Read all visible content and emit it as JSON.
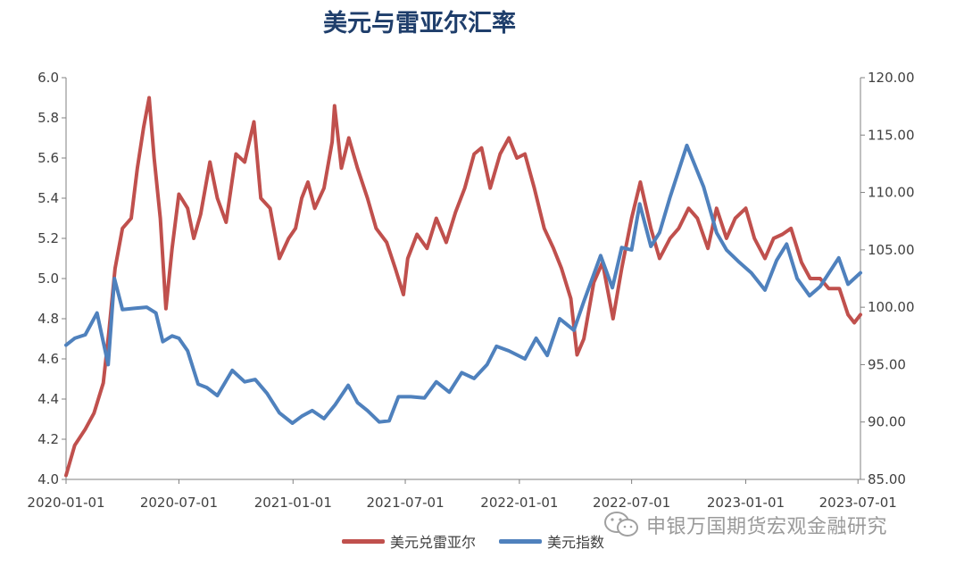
{
  "chart_data": {
    "type": "line",
    "title": "美元与雷亚尔汇率",
    "x_tick_labels": [
      "2020-01-01",
      "2020-07-01",
      "2021-01-01",
      "2021-07-01",
      "2022-01-01",
      "2022-07-01",
      "2023-01-01",
      "2023-07-01"
    ],
    "x_range": [
      "2020-01-01",
      "2023-07-05"
    ],
    "y_left": {
      "range": [
        4.0,
        6.0
      ],
      "ticks": [
        "4.0",
        "4.2",
        "4.4",
        "4.6",
        "4.8",
        "5.0",
        "5.2",
        "5.4",
        "5.6",
        "5.8",
        "6.0"
      ]
    },
    "y_right": {
      "range": [
        85,
        120
      ],
      "ticks": [
        "85.00",
        "90.00",
        "95.00",
        "100.00",
        "105.00",
        "110.00",
        "115.00",
        "120.00"
      ]
    },
    "grid": false,
    "legend_position": "bottom",
    "series": [
      {
        "name": "美元兑雷亚尔",
        "axis": "left",
        "color": "#c0504d",
        "points": [
          [
            "2020-01-01",
            4.02
          ],
          [
            "2020-01-15",
            4.17
          ],
          [
            "2020-02-01",
            4.25
          ],
          [
            "2020-02-15",
            4.33
          ],
          [
            "2020-03-01",
            4.48
          ],
          [
            "2020-03-10",
            4.73
          ],
          [
            "2020-03-20",
            5.05
          ],
          [
            "2020-04-01",
            5.25
          ],
          [
            "2020-04-15",
            5.3
          ],
          [
            "2020-04-25",
            5.55
          ],
          [
            "2020-05-05",
            5.75
          ],
          [
            "2020-05-14",
            5.9
          ],
          [
            "2020-05-22",
            5.6
          ],
          [
            "2020-06-01",
            5.3
          ],
          [
            "2020-06-10",
            4.85
          ],
          [
            "2020-06-20",
            5.15
          ],
          [
            "2020-07-01",
            5.42
          ],
          [
            "2020-07-15",
            5.35
          ],
          [
            "2020-07-25",
            5.2
          ],
          [
            "2020-08-05",
            5.32
          ],
          [
            "2020-08-20",
            5.58
          ],
          [
            "2020-09-01",
            5.4
          ],
          [
            "2020-09-15",
            5.28
          ],
          [
            "2020-10-01",
            5.62
          ],
          [
            "2020-10-15",
            5.58
          ],
          [
            "2020-10-30",
            5.78
          ],
          [
            "2020-11-10",
            5.4
          ],
          [
            "2020-11-25",
            5.35
          ],
          [
            "2020-12-10",
            5.1
          ],
          [
            "2020-12-25",
            5.2
          ],
          [
            "2021-01-05",
            5.25
          ],
          [
            "2021-01-15",
            5.4
          ],
          [
            "2021-01-25",
            5.48
          ],
          [
            "2021-02-05",
            5.35
          ],
          [
            "2021-02-20",
            5.45
          ],
          [
            "2021-03-05",
            5.68
          ],
          [
            "2021-03-09",
            5.86
          ],
          [
            "2021-03-20",
            5.55
          ],
          [
            "2021-04-01",
            5.7
          ],
          [
            "2021-04-15",
            5.55
          ],
          [
            "2021-05-01",
            5.4
          ],
          [
            "2021-05-15",
            5.25
          ],
          [
            "2021-06-01",
            5.18
          ],
          [
            "2021-06-15",
            5.05
          ],
          [
            "2021-06-28",
            4.92
          ],
          [
            "2021-07-05",
            5.1
          ],
          [
            "2021-07-20",
            5.22
          ],
          [
            "2021-08-05",
            5.15
          ],
          [
            "2021-08-20",
            5.3
          ],
          [
            "2021-09-05",
            5.18
          ],
          [
            "2021-09-20",
            5.33
          ],
          [
            "2021-10-05",
            5.45
          ],
          [
            "2021-10-20",
            5.62
          ],
          [
            "2021-11-01",
            5.65
          ],
          [
            "2021-11-15",
            5.45
          ],
          [
            "2021-12-01",
            5.62
          ],
          [
            "2021-12-15",
            5.7
          ],
          [
            "2021-12-28",
            5.6
          ],
          [
            "2022-01-10",
            5.62
          ],
          [
            "2022-01-25",
            5.45
          ],
          [
            "2022-02-10",
            5.25
          ],
          [
            "2022-02-25",
            5.15
          ],
          [
            "2022-03-10",
            5.05
          ],
          [
            "2022-03-25",
            4.9
          ],
          [
            "2022-04-04",
            4.62
          ],
          [
            "2022-04-15",
            4.7
          ],
          [
            "2022-05-01",
            4.98
          ],
          [
            "2022-05-15",
            5.08
          ],
          [
            "2022-06-01",
            4.8
          ],
          [
            "2022-06-15",
            5.05
          ],
          [
            "2022-07-01",
            5.3
          ],
          [
            "2022-07-15",
            5.48
          ],
          [
            "2022-08-01",
            5.25
          ],
          [
            "2022-08-15",
            5.1
          ],
          [
            "2022-09-01",
            5.2
          ],
          [
            "2022-09-15",
            5.25
          ],
          [
            "2022-10-01",
            5.35
          ],
          [
            "2022-10-15",
            5.3
          ],
          [
            "2022-11-01",
            5.15
          ],
          [
            "2022-11-15",
            5.35
          ],
          [
            "2022-12-01",
            5.2
          ],
          [
            "2022-12-15",
            5.3
          ],
          [
            "2023-01-01",
            5.35
          ],
          [
            "2023-01-15",
            5.2
          ],
          [
            "2023-02-01",
            5.1
          ],
          [
            "2023-02-15",
            5.2
          ],
          [
            "2023-03-01",
            5.22
          ],
          [
            "2023-03-15",
            5.25
          ],
          [
            "2023-04-01",
            5.08
          ],
          [
            "2023-04-15",
            5.0
          ],
          [
            "2023-05-01",
            5.0
          ],
          [
            "2023-05-15",
            4.95
          ],
          [
            "2023-06-01",
            4.95
          ],
          [
            "2023-06-15",
            4.82
          ],
          [
            "2023-06-25",
            4.78
          ],
          [
            "2023-07-05",
            4.82
          ]
        ]
      },
      {
        "name": "美元指数",
        "axis": "right",
        "color": "#4f81bd",
        "points": [
          [
            "2020-01-01",
            96.7
          ],
          [
            "2020-01-15",
            97.3
          ],
          [
            "2020-02-01",
            97.6
          ],
          [
            "2020-02-20",
            99.5
          ],
          [
            "2020-03-09",
            95.0
          ],
          [
            "2020-03-19",
            102.5
          ],
          [
            "2020-04-01",
            99.8
          ],
          [
            "2020-04-20",
            99.9
          ],
          [
            "2020-05-10",
            100.0
          ],
          [
            "2020-05-25",
            99.5
          ],
          [
            "2020-06-05",
            97.0
          ],
          [
            "2020-06-20",
            97.5
          ],
          [
            "2020-07-01",
            97.3
          ],
          [
            "2020-07-15",
            96.2
          ],
          [
            "2020-08-01",
            93.3
          ],
          [
            "2020-08-15",
            93.0
          ],
          [
            "2020-09-01",
            92.3
          ],
          [
            "2020-09-25",
            94.5
          ],
          [
            "2020-10-15",
            93.5
          ],
          [
            "2020-11-01",
            93.7
          ],
          [
            "2020-11-20",
            92.5
          ],
          [
            "2020-12-10",
            90.8
          ],
          [
            "2020-12-31",
            89.9
          ],
          [
            "2021-01-15",
            90.5
          ],
          [
            "2021-02-01",
            91.0
          ],
          [
            "2021-02-20",
            90.3
          ],
          [
            "2021-03-10",
            91.5
          ],
          [
            "2021-03-31",
            93.2
          ],
          [
            "2021-04-15",
            91.7
          ],
          [
            "2021-05-01",
            91.0
          ],
          [
            "2021-05-20",
            90.0
          ],
          [
            "2021-06-05",
            90.1
          ],
          [
            "2021-06-20",
            92.2
          ],
          [
            "2021-07-10",
            92.2
          ],
          [
            "2021-08-01",
            92.1
          ],
          [
            "2021-08-20",
            93.5
          ],
          [
            "2021-09-10",
            92.6
          ],
          [
            "2021-09-30",
            94.3
          ],
          [
            "2021-10-20",
            93.8
          ],
          [
            "2021-11-10",
            95.0
          ],
          [
            "2021-11-25",
            96.6
          ],
          [
            "2021-12-15",
            96.2
          ],
          [
            "2022-01-10",
            95.5
          ],
          [
            "2022-01-28",
            97.3
          ],
          [
            "2022-02-15",
            95.8
          ],
          [
            "2022-03-07",
            99.0
          ],
          [
            "2022-03-30",
            98.0
          ],
          [
            "2022-04-15",
            100.5
          ],
          [
            "2022-05-12",
            104.5
          ],
          [
            "2022-05-31",
            101.7
          ],
          [
            "2022-06-15",
            105.2
          ],
          [
            "2022-07-01",
            105.0
          ],
          [
            "2022-07-14",
            109.0
          ],
          [
            "2022-08-01",
            105.3
          ],
          [
            "2022-08-15",
            106.5
          ],
          [
            "2022-09-01",
            109.6
          ],
          [
            "2022-09-28",
            114.1
          ],
          [
            "2022-10-10",
            112.5
          ],
          [
            "2022-10-25",
            110.5
          ],
          [
            "2022-11-15",
            106.5
          ],
          [
            "2022-12-01",
            105.0
          ],
          [
            "2022-12-20",
            104.0
          ],
          [
            "2023-01-10",
            103.0
          ],
          [
            "2023-02-01",
            101.5
          ],
          [
            "2023-02-20",
            104.1
          ],
          [
            "2023-03-08",
            105.5
          ],
          [
            "2023-03-25",
            102.5
          ],
          [
            "2023-04-14",
            101.0
          ],
          [
            "2023-05-01",
            101.8
          ],
          [
            "2023-05-31",
            104.3
          ],
          [
            "2023-06-15",
            102.0
          ],
          [
            "2023-07-05",
            103.0
          ]
        ]
      }
    ]
  },
  "legend": {
    "items": [
      "美元兑雷亚尔",
      "美元指数"
    ]
  },
  "watermark": {
    "text": "申银万国期货宏观金融研究",
    "icon": "wechat-icon"
  }
}
